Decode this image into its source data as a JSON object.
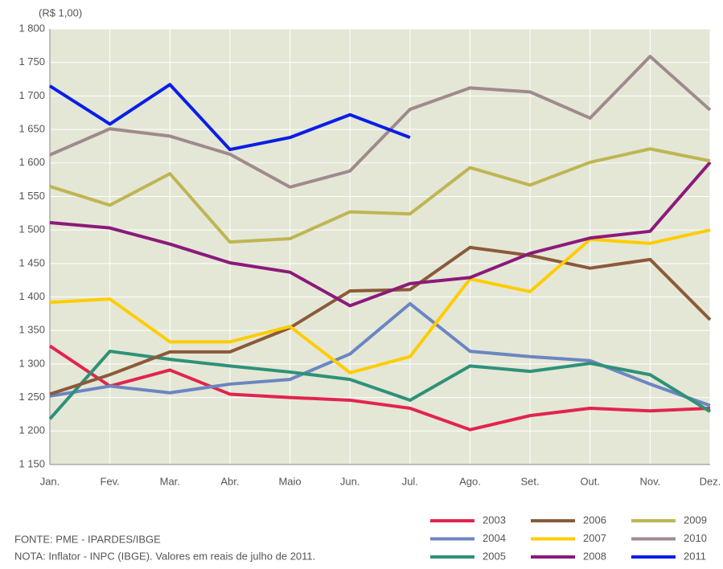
{
  "chart_data": {
    "type": "line",
    "y_unit_label": "(R$ 1,00)",
    "categories": [
      "Jan.",
      "Fev.",
      "Mar.",
      "Abr.",
      "Maio",
      "Jun.",
      "Jul.",
      "Ago.",
      "Set.",
      "Out.",
      "Nov.",
      "Dez."
    ],
    "ylim": [
      1150,
      1800
    ],
    "yticks": [
      {
        "value": 1150,
        "label": "1 150"
      },
      {
        "value": 1200,
        "label": "1 200"
      },
      {
        "value": 1250,
        "label": "1 250"
      },
      {
        "value": 1300,
        "label": "1 300"
      },
      {
        "value": 1350,
        "label": "1 350"
      },
      {
        "value": 1400,
        "label": "1 400"
      },
      {
        "value": 1450,
        "label": "1 450"
      },
      {
        "value": 1500,
        "label": "1 500"
      },
      {
        "value": 1550,
        "label": "1 550"
      },
      {
        "value": 1600,
        "label": "1 600"
      },
      {
        "value": 1650,
        "label": "1 650"
      },
      {
        "value": 1700,
        "label": "1 700"
      },
      {
        "value": 1750,
        "label": "1 750"
      },
      {
        "value": 1800,
        "label": "1 800"
      }
    ],
    "grid": true,
    "series": [
      {
        "name": "2003",
        "color": "#e2244f",
        "values": [
          1327,
          1267,
          1291,
          1255,
          1250,
          1246,
          1234,
          1202,
          1223,
          1234,
          1230,
          1234
        ]
      },
      {
        "name": "2004",
        "color": "#6b86c1",
        "values": [
          1252,
          1267,
          1257,
          1270,
          1277,
          1315,
          1390,
          1319,
          1311,
          1305,
          1270,
          1238
        ]
      },
      {
        "name": "2005",
        "color": "#2f9178",
        "values": [
          1218,
          1319,
          1307,
          1297,
          1288,
          1277,
          1246,
          1297,
          1289,
          1301,
          1284,
          1229
        ]
      },
      {
        "name": "2006",
        "color": "#8b5a3a",
        "values": [
          1255,
          1284,
          1318,
          1318,
          1354,
          1409,
          1411,
          1474,
          1462,
          1443,
          1456,
          1366
        ]
      },
      {
        "name": "2007",
        "color": "#ffcc00",
        "values": [
          1392,
          1397,
          1333,
          1333,
          1356,
          1287,
          1311,
          1427,
          1408,
          1486,
          1480,
          1500
        ]
      },
      {
        "name": "2008",
        "color": "#8b1a7a",
        "values": [
          1511,
          1503,
          1479,
          1451,
          1437,
          1387,
          1420,
          1429,
          1465,
          1488,
          1498,
          1601
        ]
      },
      {
        "name": "2009",
        "color": "#bfb552",
        "values": [
          1565,
          1537,
          1584,
          1482,
          1487,
          1527,
          1524,
          1593,
          1567,
          1601,
          1621,
          1603
        ]
      },
      {
        "name": "2010",
        "color": "#a08a8e",
        "values": [
          1612,
          1651,
          1640,
          1613,
          1564,
          1588,
          1680,
          1712,
          1706,
          1667,
          1759,
          1679
        ]
      },
      {
        "name": "2011",
        "color": "#0a1ee6",
        "values": [
          1715,
          1658,
          1717,
          1620,
          1638,
          1672,
          1638,
          null,
          null,
          null,
          null,
          null
        ]
      }
    ],
    "notes": [
      "FONTE: PME - IPARDES/IBGE",
      "NOTA: Inflator - INPC (IBGE). Valores em reais de julho de 2011."
    ]
  }
}
